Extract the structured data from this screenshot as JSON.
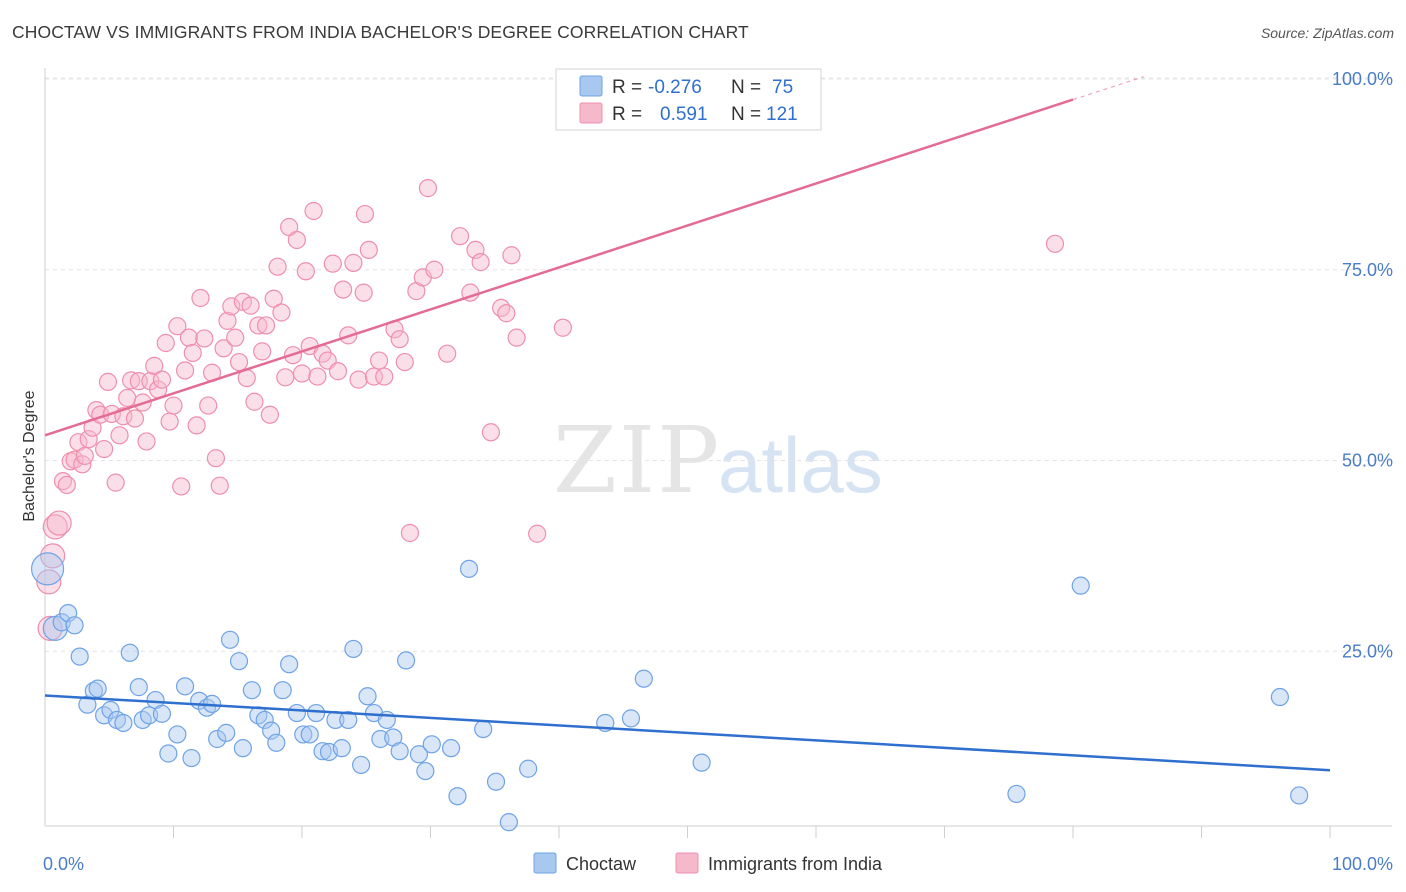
{
  "title": "CHOCTAW VS IMMIGRANTS FROM INDIA BACHELOR'S DEGREE CORRELATION CHART",
  "source": "Source: ZipAtlas.com",
  "watermark": {
    "zip": "ZIP",
    "atlas": "atlas"
  },
  "legend_top": {
    "rows": [
      {
        "r_label": "R =",
        "r_value": "-0.276",
        "n_label": "N =",
        "n_value": "75",
        "color": "#a9c8ef"
      },
      {
        "r_label": "R =",
        "r_value": "0.591",
        "n_label": "N =",
        "n_value": "121",
        "color": "#f6b8cb"
      }
    ]
  },
  "legend_bottom": [
    {
      "label": "Choctaw",
      "color": "#a9c8ef"
    },
    {
      "label": "Immigrants from India",
      "color": "#f6b8cb"
    }
  ],
  "chart_data": {
    "type": "scatter",
    "title": "CHOCTAW VS IMMIGRANTS FROM INDIA BACHELOR'S DEGREE CORRELATION CHART",
    "xlabel": "",
    "ylabel": "Bachelor's Degree",
    "xlim": [
      0,
      100
    ],
    "ylim": [
      0,
      100
    ],
    "x_tick_labels": [
      "0.0%",
      "100.0%"
    ],
    "y_tick_labels": [
      {
        "value": 25,
        "label": "25.0%"
      },
      {
        "value": 50,
        "label": "50.0%"
      },
      {
        "value": 75,
        "label": "75.0%"
      },
      {
        "value": 100,
        "label": "100.0%"
      }
    ],
    "grid": true,
    "legend_position": "top-center",
    "series": [
      {
        "name": "Choctaw",
        "color": "#6fa3e6",
        "fill": "#a9c8ef",
        "line_color": "#2f6fce",
        "trend": {
          "x": [
            0,
            100
          ],
          "y": [
            19.2,
            9.4
          ]
        },
        "points": [
          [
            0.2,
            35.8
          ],
          [
            0.8,
            28.0
          ],
          [
            1.3,
            28.8
          ],
          [
            1.8,
            30.0
          ],
          [
            2.3,
            28.4
          ],
          [
            2.7,
            24.3
          ],
          [
            3.3,
            18.0
          ],
          [
            3.8,
            19.8
          ],
          [
            4.1,
            20.1
          ],
          [
            4.6,
            16.6
          ],
          [
            5.1,
            17.3
          ],
          [
            5.6,
            16.0
          ],
          [
            6.1,
            15.6
          ],
          [
            6.6,
            24.8
          ],
          [
            7.3,
            20.3
          ],
          [
            7.6,
            16.0
          ],
          [
            8.1,
            16.6
          ],
          [
            8.6,
            18.6
          ],
          [
            9.1,
            16.8
          ],
          [
            9.6,
            11.6
          ],
          [
            10.3,
            14.1
          ],
          [
            10.9,
            20.4
          ],
          [
            11.4,
            11.0
          ],
          [
            12.0,
            18.5
          ],
          [
            12.6,
            17.6
          ],
          [
            13.0,
            18.1
          ],
          [
            13.4,
            13.5
          ],
          [
            14.1,
            14.3
          ],
          [
            14.4,
            26.5
          ],
          [
            15.1,
            23.7
          ],
          [
            15.4,
            12.3
          ],
          [
            16.1,
            19.9
          ],
          [
            16.6,
            16.6
          ],
          [
            17.1,
            16.0
          ],
          [
            17.6,
            14.6
          ],
          [
            18.0,
            13.0
          ],
          [
            18.5,
            19.9
          ],
          [
            19.0,
            23.3
          ],
          [
            19.6,
            16.9
          ],
          [
            20.1,
            14.1
          ],
          [
            20.6,
            14.1
          ],
          [
            21.1,
            16.9
          ],
          [
            21.6,
            11.9
          ],
          [
            22.1,
            11.8
          ],
          [
            22.6,
            16.0
          ],
          [
            23.1,
            12.3
          ],
          [
            23.6,
            16.0
          ],
          [
            24.0,
            25.3
          ],
          [
            24.6,
            10.1
          ],
          [
            25.1,
            19.1
          ],
          [
            25.6,
            16.9
          ],
          [
            26.1,
            13.5
          ],
          [
            26.6,
            16.0
          ],
          [
            27.1,
            13.7
          ],
          [
            27.6,
            11.9
          ],
          [
            28.1,
            23.8
          ],
          [
            29.1,
            11.5
          ],
          [
            29.6,
            9.3
          ],
          [
            30.1,
            12.8
          ],
          [
            31.6,
            12.3
          ],
          [
            32.1,
            6.0
          ],
          [
            33.0,
            35.8
          ],
          [
            34.1,
            14.8
          ],
          [
            35.1,
            7.9
          ],
          [
            36.1,
            2.6
          ],
          [
            37.6,
            9.6
          ],
          [
            43.6,
            15.6
          ],
          [
            45.6,
            16.2
          ],
          [
            46.6,
            21.4
          ],
          [
            51.1,
            10.4
          ],
          [
            75.6,
            6.3
          ],
          [
            80.6,
            33.6
          ],
          [
            96.1,
            19.0
          ],
          [
            97.6,
            6.1
          ]
        ]
      },
      {
        "name": "Immigrants from India",
        "color": "#ee8fad",
        "fill": "#f6b8cb",
        "line_color": "#e36b94",
        "trend": {
          "x": [
            0,
            80
          ],
          "y": [
            53.3,
            97.3
          ]
        },
        "trend_dashed": {
          "x": [
            80,
            85.5
          ],
          "y": [
            97.3,
            100.3
          ]
        },
        "points": [
          [
            0.3,
            34.1
          ],
          [
            0.4,
            28.0
          ],
          [
            0.6,
            37.5
          ],
          [
            0.8,
            41.3
          ],
          [
            1.1,
            41.8
          ],
          [
            1.4,
            47.3
          ],
          [
            1.7,
            46.8
          ],
          [
            2.0,
            49.9
          ],
          [
            2.3,
            50.1
          ],
          [
            2.6,
            52.4
          ],
          [
            2.9,
            49.5
          ],
          [
            3.1,
            50.6
          ],
          [
            3.4,
            52.8
          ],
          [
            3.7,
            54.3
          ],
          [
            4.0,
            56.6
          ],
          [
            4.3,
            56.0
          ],
          [
            4.6,
            51.5
          ],
          [
            4.9,
            60.3
          ],
          [
            5.2,
            56.1
          ],
          [
            5.5,
            47.1
          ],
          [
            5.8,
            53.3
          ],
          [
            6.1,
            55.8
          ],
          [
            6.4,
            58.2
          ],
          [
            6.7,
            60.5
          ],
          [
            7.0,
            55.5
          ],
          [
            7.3,
            60.4
          ],
          [
            7.6,
            57.6
          ],
          [
            7.9,
            52.5
          ],
          [
            8.2,
            60.4
          ],
          [
            8.5,
            62.4
          ],
          [
            8.8,
            59.3
          ],
          [
            9.1,
            60.6
          ],
          [
            9.4,
            65.4
          ],
          [
            9.7,
            55.1
          ],
          [
            10.0,
            57.2
          ],
          [
            10.3,
            67.6
          ],
          [
            10.6,
            46.6
          ],
          [
            10.9,
            61.8
          ],
          [
            11.2,
            66.1
          ],
          [
            11.5,
            64.1
          ],
          [
            11.8,
            54.6
          ],
          [
            12.1,
            71.3
          ],
          [
            12.4,
            66.0
          ],
          [
            12.7,
            57.2
          ],
          [
            13.0,
            61.5
          ],
          [
            13.3,
            50.3
          ],
          [
            13.6,
            46.7
          ],
          [
            13.9,
            64.7
          ],
          [
            14.2,
            68.3
          ],
          [
            14.5,
            70.2
          ],
          [
            14.8,
            66.1
          ],
          [
            15.1,
            62.9
          ],
          [
            15.4,
            70.8
          ],
          [
            15.7,
            60.8
          ],
          [
            16.0,
            70.3
          ],
          [
            16.3,
            57.7
          ],
          [
            16.6,
            67.7
          ],
          [
            16.9,
            64.3
          ],
          [
            17.2,
            67.7
          ],
          [
            17.5,
            56.0
          ],
          [
            17.8,
            71.2
          ],
          [
            18.1,
            75.4
          ],
          [
            18.4,
            69.4
          ],
          [
            18.7,
            60.9
          ],
          [
            19.0,
            80.6
          ],
          [
            19.3,
            63.8
          ],
          [
            19.6,
            78.9
          ],
          [
            20.0,
            61.4
          ],
          [
            20.3,
            74.8
          ],
          [
            20.6,
            65.0
          ],
          [
            20.9,
            82.7
          ],
          [
            21.2,
            61.0
          ],
          [
            21.6,
            64.0
          ],
          [
            22.0,
            63.1
          ],
          [
            22.4,
            75.8
          ],
          [
            22.8,
            61.7
          ],
          [
            23.2,
            72.4
          ],
          [
            23.6,
            66.4
          ],
          [
            24.0,
            75.9
          ],
          [
            24.4,
            60.6
          ],
          [
            24.8,
            72.0
          ],
          [
            24.9,
            82.3
          ],
          [
            25.2,
            77.6
          ],
          [
            25.6,
            61.0
          ],
          [
            26.0,
            63.1
          ],
          [
            26.4,
            61.0
          ],
          [
            27.2,
            67.2
          ],
          [
            27.6,
            65.9
          ],
          [
            28.0,
            62.9
          ],
          [
            28.4,
            40.5
          ],
          [
            28.9,
            72.2
          ],
          [
            29.4,
            74.0
          ],
          [
            29.8,
            85.7
          ],
          [
            30.3,
            75.0
          ],
          [
            31.3,
            64.0
          ],
          [
            32.3,
            79.4
          ],
          [
            33.1,
            72.0
          ],
          [
            33.5,
            77.6
          ],
          [
            33.9,
            76.0
          ],
          [
            34.7,
            53.7
          ],
          [
            35.5,
            70.0
          ],
          [
            35.9,
            69.3
          ],
          [
            36.3,
            76.9
          ],
          [
            36.7,
            66.1
          ],
          [
            38.3,
            40.4
          ],
          [
            40.3,
            67.4
          ],
          [
            78.6,
            78.4
          ]
        ]
      }
    ]
  }
}
